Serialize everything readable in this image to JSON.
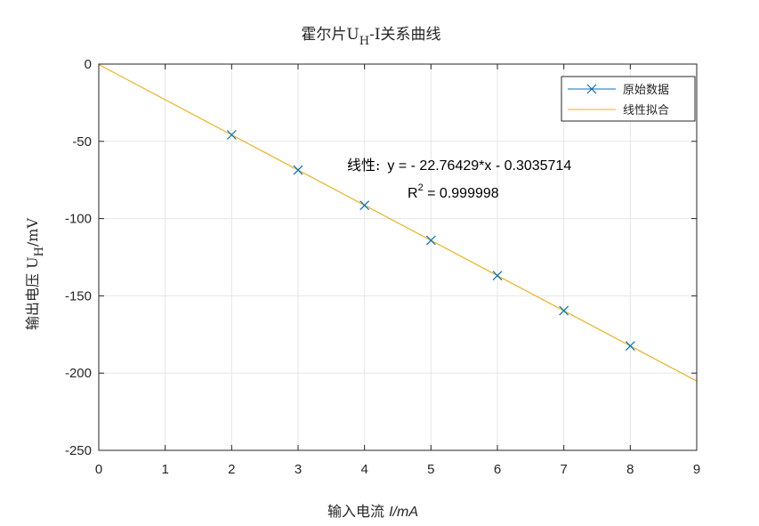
{
  "chart_data": {
    "type": "scatter",
    "title": {
      "prefix": "霍尔片U",
      "sub": "H",
      "suffix": "-I关系曲线"
    },
    "xlabel": {
      "prefix": "输入电流 ",
      "italic": "I/mA"
    },
    "ylabel": {
      "prefix": "输出电压 U",
      "sub": "H",
      "suffix": "/mV"
    },
    "xlim": [
      0,
      9
    ],
    "ylim": [
      -250,
      0
    ],
    "x_ticks": [
      0,
      1,
      2,
      3,
      4,
      5,
      6,
      7,
      8,
      9
    ],
    "y_ticks": [
      0,
      -50,
      -100,
      -150,
      -200,
      -250
    ],
    "grid": true,
    "legend_position": "top-right",
    "series": [
      {
        "name": "原始数据",
        "kind": "markers-x",
        "color": "#0072BD",
        "x": [
          2,
          3,
          4,
          5,
          6,
          7,
          8
        ],
        "y": [
          -45.8,
          -68.6,
          -91.4,
          -114.1,
          -136.9,
          -159.6,
          -182.4
        ]
      },
      {
        "name": "线性拟合",
        "kind": "line",
        "color": "#EDB120",
        "slope": -22.76429,
        "intercept": -0.3035714,
        "x_range": [
          0,
          9
        ]
      }
    ],
    "annotation": {
      "equation_label": "线性:",
      "equation": "y = - 22.76429*x - 0.3035714",
      "r2_prefix": "R",
      "r2_sup": "2",
      "r2_value": " = 0.999998"
    }
  }
}
